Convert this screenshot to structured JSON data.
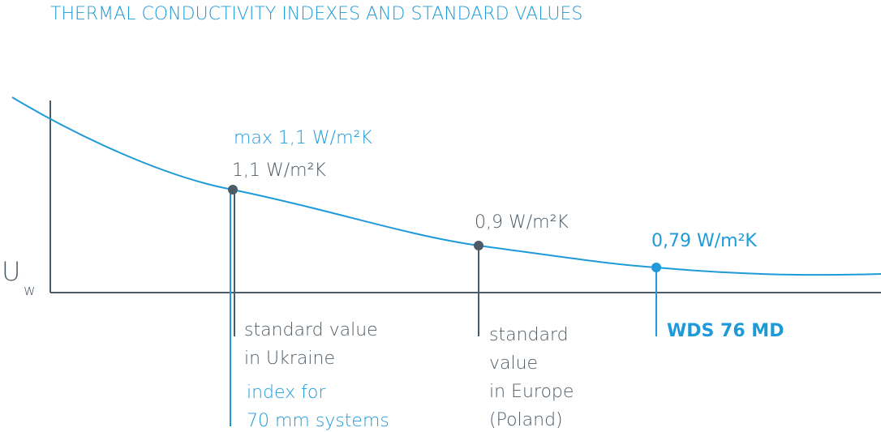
{
  "chart_data": {
    "type": "line",
    "title": "THERMAL CONDUCTIVITY INDEXES AND STANDARD VALUES",
    "ylabel": "U",
    "ylabel_subscript": "w",
    "grid": false,
    "colors": {
      "accent": "#1f9ad8",
      "neutral": "#4d5b66"
    },
    "points": [
      {
        "value": 1.1,
        "label": "1,1 W/m²K",
        "max_label": "max 1,1 W/m²K",
        "caption": [
          "standard value",
          "in Ukraine"
        ],
        "caption_blue": [
          "index for",
          "70 mm systems"
        ]
      },
      {
        "value": 0.9,
        "label": "0,9 W/m²K",
        "caption": [
          "standard",
          "value",
          "in Europe",
          "(Poland)"
        ]
      },
      {
        "value": 0.79,
        "label": "0,79 W/m²K",
        "caption": [
          "WDS 76 MD"
        ]
      }
    ]
  }
}
